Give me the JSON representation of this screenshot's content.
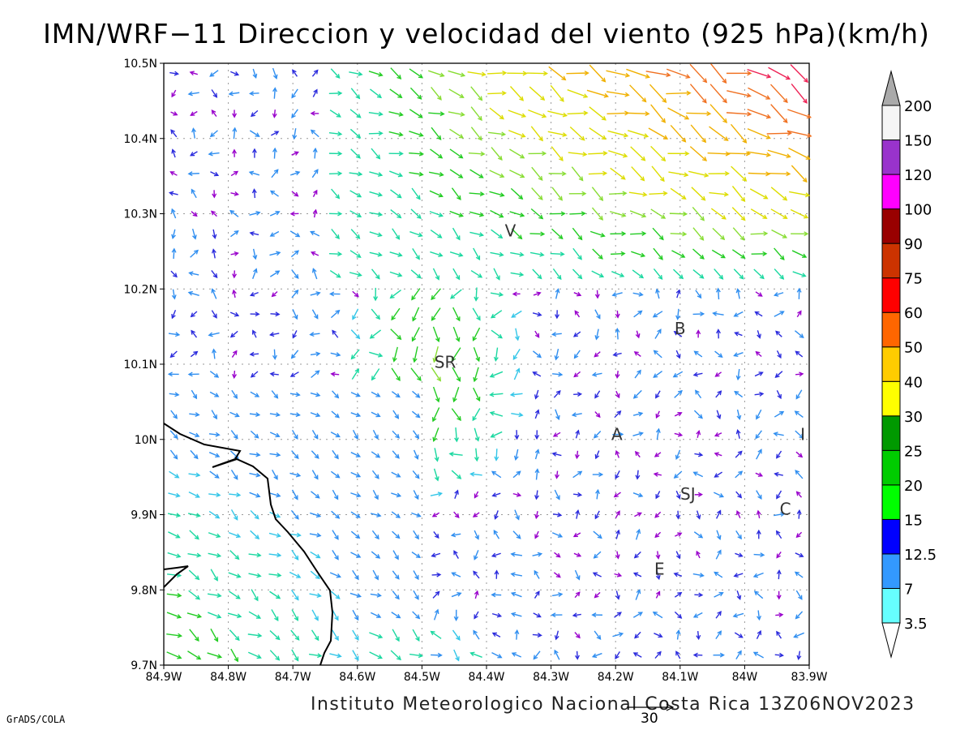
{
  "title": "IMN/WRF−11 Direccion y velocidad del viento (925 hPa)(km/h)",
  "footer": "Instituto Meteorologico Nacional Costa Rica 13Z06NOV2023",
  "credit": "GrADS/COLA",
  "reference_vector": {
    "label": "30"
  },
  "map": {
    "lon_range": [
      -84.9,
      -83.9
    ],
    "lat_range": [
      9.7,
      10.5
    ],
    "lon_ticks": [
      "84.9W",
      "84.8W",
      "84.7W",
      "84.6W",
      "84.5W",
      "84.4W",
      "84.3W",
      "84.2W",
      "84.1W",
      "84W",
      "83.9W"
    ],
    "lat_ticks": [
      "9.7N",
      "9.8N",
      "9.9N",
      "10N",
      "10.1N",
      "10.2N",
      "10.3N",
      "10.4N",
      "10.5N"
    ],
    "grid": "dotted",
    "city_labels": [
      {
        "text": "V",
        "lon": -84.363,
        "lat": 10.27
      },
      {
        "text": "SR",
        "lon": -84.464,
        "lat": 10.095
      },
      {
        "text": "B",
        "lon": -84.1,
        "lat": 10.14
      },
      {
        "text": "A",
        "lon": -84.198,
        "lat": 9.999
      },
      {
        "text": "I",
        "lon": -83.91,
        "lat": 9.999
      },
      {
        "text": "SJ",
        "lon": -84.088,
        "lat": 9.92
      },
      {
        "text": "C",
        "lon": -83.937,
        "lat": 9.9
      },
      {
        "text": "E",
        "lon": -84.132,
        "lat": 9.82
      }
    ]
  },
  "colorbar": {
    "labels": [
      "3.5",
      "7",
      "12.5",
      "15",
      "20",
      "25",
      "30",
      "40",
      "50",
      "60",
      "75",
      "90",
      "100",
      "120",
      "150",
      "200"
    ],
    "colors": [
      "#ffffff",
      "#66ffff",
      "#3399ff",
      "#0000ff",
      "#00ff00",
      "#00cc00",
      "#009900",
      "#ffff00",
      "#ffcc00",
      "#ff6600",
      "#ff0000",
      "#cc3300",
      "#990000",
      "#ff00ff",
      "#9933cc",
      "#f5f5f5",
      "#aaaaaa"
    ]
  },
  "wind_legend_colors": {
    "lt_3_5": "#9900cc",
    "3_5_7": "#2b2bdd",
    "7_12_5": "#2f8ef0",
    "12_5_15": "#33c6e8",
    "15_20": "#1ad8a0",
    "20_25": "#22cc22",
    "25_30": "#88dd33",
    "30_40": "#dddd00",
    "40_50": "#f0b000",
    "50_60": "#f07020",
    "60_plus": "#ee2255"
  }
}
